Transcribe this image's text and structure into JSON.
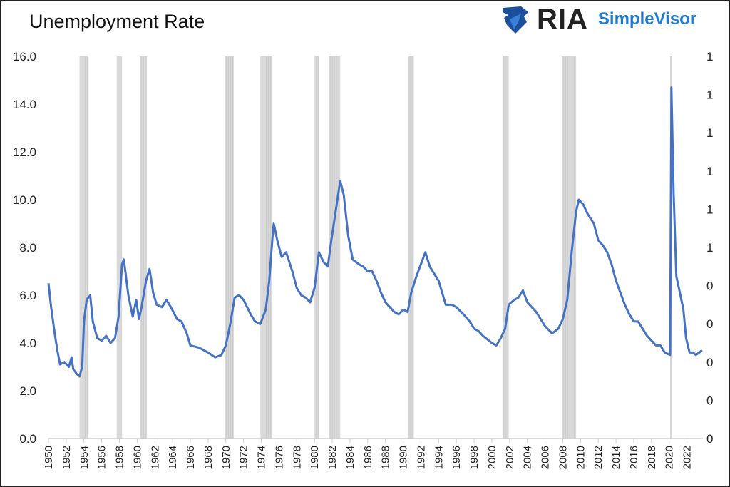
{
  "chart_data": {
    "type": "line",
    "title": "Unemployment Rate",
    "logo": {
      "brand": "RIA",
      "sub": "SimpleVisor"
    },
    "xlim": [
      1950,
      2023.8
    ],
    "ylim": [
      0,
      16
    ],
    "y_ticks": [
      "0.0",
      "2.0",
      "4.0",
      "6.0",
      "8.0",
      "10.0",
      "12.0",
      "14.0",
      "16.0"
    ],
    "y2_ticks": [
      "0",
      "0",
      "0",
      "0",
      "0",
      "1",
      "1",
      "1",
      "1",
      "1",
      "1"
    ],
    "x_ticks": [
      "1950",
      "1952",
      "1954",
      "1956",
      "1958",
      "1960",
      "1962",
      "1964",
      "1966",
      "1968",
      "1970",
      "1972",
      "1974",
      "1976",
      "1978",
      "1980",
      "1982",
      "1984",
      "1986",
      "1988",
      "1990",
      "1992",
      "1994",
      "1996",
      "1998",
      "2000",
      "2002",
      "2004",
      "2006",
      "2008",
      "2010",
      "2012",
      "2014",
      "2016",
      "2018",
      "2020",
      "2022"
    ],
    "grid": false,
    "line_color": "#4472c4",
    "recession_color": "#d9d9d9",
    "recessions": [
      [
        1953.5,
        1954.4
      ],
      [
        1957.7,
        1958.3
      ],
      [
        1960.3,
        1961.1
      ],
      [
        1969.9,
        1970.9
      ],
      [
        1973.9,
        1975.2
      ],
      [
        1980.0,
        1980.5
      ],
      [
        1981.6,
        1982.9
      ],
      [
        1990.6,
        1991.2
      ],
      [
        2001.2,
        2001.9
      ],
      [
        2007.9,
        2009.5
      ],
      [
        2020.1,
        2020.3
      ]
    ],
    "series": [
      {
        "x": [
          1950.0,
          1950.3,
          1950.7,
          1951.0,
          1951.3,
          1951.8,
          1952.3,
          1952.6,
          1952.8,
          1953.2,
          1953.5,
          1953.8,
          1954.0,
          1954.3,
          1954.7,
          1955.0,
          1955.5,
          1956.0,
          1956.5,
          1957.0,
          1957.5,
          1957.9,
          1958.3,
          1958.5,
          1959.0,
          1959.5,
          1959.9,
          1960.2,
          1960.5,
          1961.0,
          1961.4,
          1961.8,
          1962.2,
          1962.8,
          1963.3,
          1963.8,
          1964.5,
          1965.0,
          1965.6,
          1966.0,
          1967.0,
          1968.0,
          1968.8,
          1969.5,
          1970.0,
          1970.5,
          1971.0,
          1971.5,
          1972.0,
          1972.8,
          1973.3,
          1973.9,
          1974.5,
          1974.9,
          1975.3,
          1975.4,
          1975.8,
          1976.3,
          1976.8,
          1977.5,
          1978.0,
          1978.5,
          1979.0,
          1979.5,
          1980.0,
          1980.4,
          1980.5,
          1981.0,
          1981.5,
          1981.9,
          1982.5,
          1982.9,
          1983.3,
          1983.8,
          1984.3,
          1985.0,
          1985.5,
          1986.0,
          1986.5,
          1987.0,
          1987.5,
          1988.0,
          1989.0,
          1989.5,
          1990.0,
          1990.5,
          1990.9,
          1991.5,
          1992.0,
          1992.5,
          1993.0,
          1993.5,
          1994.0,
          1994.8,
          1995.5,
          1996.0,
          1996.8,
          1997.5,
          1998.0,
          1998.5,
          1999.0,
          2000.0,
          2000.5,
          2001.0,
          2001.5,
          2001.9,
          2002.5,
          2003.0,
          2003.5,
          2004.0,
          2004.5,
          2005.0,
          2005.5,
          2006.0,
          2006.8,
          2007.5,
          2008.0,
          2008.5,
          2009.0,
          2009.5,
          2009.8,
          2010.3,
          2010.8,
          2011.5,
          2012.0,
          2012.5,
          2013.0,
          2013.5,
          2014.0,
          2014.5,
          2015.0,
          2015.5,
          2016.0,
          2016.5,
          2017.0,
          2017.5,
          2018.0,
          2018.5,
          2019.0,
          2019.5,
          2020.1,
          2020.25,
          2020.5,
          2020.8,
          2021.2,
          2021.6,
          2021.9,
          2022.3,
          2022.7,
          2023.0,
          2023.4,
          2023.7
        ],
        "values": [
          6.5,
          5.5,
          4.4,
          3.7,
          3.1,
          3.2,
          3.0,
          3.4,
          2.9,
          2.7,
          2.6,
          3.0,
          4.9,
          5.8,
          6.0,
          4.9,
          4.2,
          4.1,
          4.3,
          4.0,
          4.2,
          5.1,
          7.3,
          7.5,
          6.0,
          5.1,
          5.8,
          5.0,
          5.5,
          6.6,
          7.1,
          6.1,
          5.6,
          5.5,
          5.8,
          5.5,
          5.0,
          4.9,
          4.4,
          3.9,
          3.8,
          3.6,
          3.4,
          3.5,
          3.9,
          4.8,
          5.9,
          6.0,
          5.8,
          5.2,
          4.9,
          4.8,
          5.4,
          6.6,
          8.6,
          9.0,
          8.3,
          7.6,
          7.8,
          7.0,
          6.3,
          6.0,
          5.9,
          5.7,
          6.3,
          7.5,
          7.8,
          7.4,
          7.2,
          8.3,
          9.8,
          10.8,
          10.2,
          8.5,
          7.5,
          7.3,
          7.2,
          7.0,
          7.0,
          6.6,
          6.1,
          5.7,
          5.3,
          5.2,
          5.4,
          5.3,
          6.1,
          6.8,
          7.3,
          7.8,
          7.2,
          6.9,
          6.6,
          5.6,
          5.6,
          5.5,
          5.2,
          4.9,
          4.6,
          4.5,
          4.3,
          4.0,
          3.9,
          4.2,
          4.6,
          5.6,
          5.8,
          5.9,
          6.2,
          5.7,
          5.5,
          5.3,
          5.0,
          4.7,
          4.4,
          4.6,
          5.0,
          5.8,
          7.8,
          9.5,
          10.0,
          9.8,
          9.4,
          9.0,
          8.3,
          8.1,
          7.8,
          7.3,
          6.6,
          6.1,
          5.6,
          5.2,
          4.9,
          4.9,
          4.6,
          4.3,
          4.1,
          3.9,
          3.9,
          3.6,
          3.5,
          14.7,
          10.2,
          6.8,
          6.1,
          5.4,
          4.2,
          3.6,
          3.6,
          3.5,
          3.6,
          3.7
        ]
      }
    ]
  }
}
